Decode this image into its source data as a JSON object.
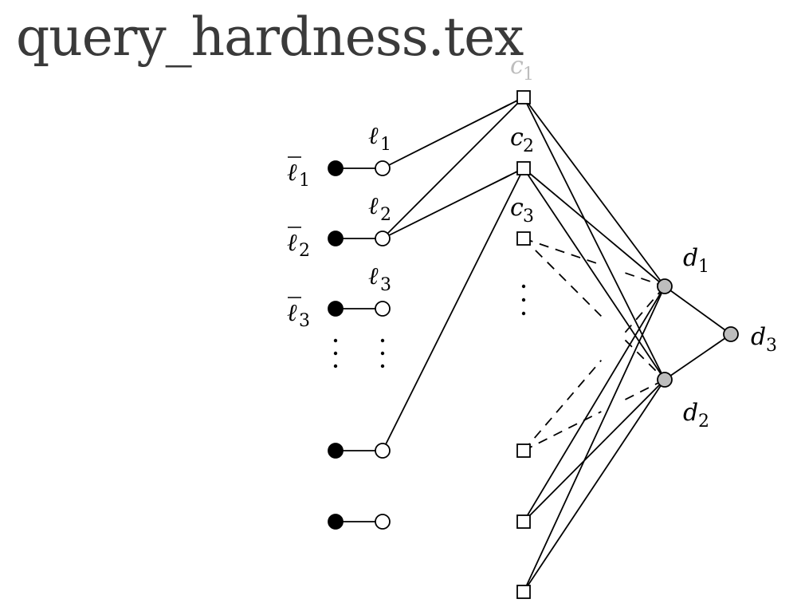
{
  "title": "query_hardness.tex",
  "colors": {
    "literal_neg": "#000000",
    "literal_pos": "#ffffff",
    "clause": "#ffffff",
    "d_node": "#bdbdbd",
    "edge": "#000000",
    "title": "#3a3a3a"
  },
  "labels": {
    "lbar1": "ℓ",
    "lbar1_sub": "1",
    "lbar2": "ℓ",
    "lbar2_sub": "2",
    "lbar3": "ℓ",
    "lbar3_sub": "3",
    "l1": "ℓ",
    "l1_sub": "1",
    "l2": "ℓ",
    "l2_sub": "2",
    "l3": "ℓ",
    "l3_sub": "3",
    "c1": "c",
    "c1_sub": "1",
    "c2": "c",
    "c2_sub": "2",
    "c3": "c",
    "c3_sub": "3",
    "d1": "d",
    "d1_sub": "1",
    "d2": "d",
    "d2_sub": "2",
    "d3": "d",
    "d3_sub": "3"
  },
  "nodes": [
    {
      "id": "nl1",
      "kind": "literal_neg"
    },
    {
      "id": "nl2",
      "kind": "literal_neg"
    },
    {
      "id": "nl3",
      "kind": "literal_neg"
    },
    {
      "id": "nl4",
      "kind": "literal_neg"
    },
    {
      "id": "nl5",
      "kind": "literal_neg"
    },
    {
      "id": "pl1",
      "kind": "literal_pos"
    },
    {
      "id": "pl2",
      "kind": "literal_pos"
    },
    {
      "id": "pl3",
      "kind": "literal_pos"
    },
    {
      "id": "pl4",
      "kind": "literal_pos"
    },
    {
      "id": "pl5",
      "kind": "literal_pos"
    },
    {
      "id": "c1",
      "kind": "clause"
    },
    {
      "id": "c2",
      "kind": "clause"
    },
    {
      "id": "c3",
      "kind": "clause"
    },
    {
      "id": "c4",
      "kind": "clause"
    },
    {
      "id": "c5",
      "kind": "clause"
    },
    {
      "id": "c6",
      "kind": "clause"
    },
    {
      "id": "d1",
      "kind": "d_node"
    },
    {
      "id": "d2",
      "kind": "d_node"
    },
    {
      "id": "d3",
      "kind": "d_node"
    }
  ],
  "edges": [
    {
      "from": "nl1",
      "to": "pl1",
      "style": "solid"
    },
    {
      "from": "nl2",
      "to": "pl2",
      "style": "solid"
    },
    {
      "from": "nl3",
      "to": "pl3",
      "style": "solid"
    },
    {
      "from": "nl4",
      "to": "pl4",
      "style": "solid"
    },
    {
      "from": "nl5",
      "to": "pl5",
      "style": "solid"
    },
    {
      "from": "pl1",
      "to": "c1",
      "style": "solid"
    },
    {
      "from": "pl2",
      "to": "c1",
      "style": "solid"
    },
    {
      "from": "pl2",
      "to": "c2",
      "style": "solid"
    },
    {
      "from": "pl4",
      "to": "c2",
      "style": "solid"
    },
    {
      "from": "c1",
      "to": "d1",
      "style": "solid"
    },
    {
      "from": "c1",
      "to": "d2",
      "style": "solid"
    },
    {
      "from": "c2",
      "to": "d1",
      "style": "solid"
    },
    {
      "from": "c2",
      "to": "d2",
      "style": "solid"
    },
    {
      "from": "c5",
      "to": "d1",
      "style": "solid"
    },
    {
      "from": "c5",
      "to": "d2",
      "style": "solid"
    },
    {
      "from": "c6",
      "to": "d1",
      "style": "solid"
    },
    {
      "from": "c6",
      "to": "d2",
      "style": "solid"
    },
    {
      "from": "d1",
      "to": "d3",
      "style": "solid"
    },
    {
      "from": "d2",
      "to": "d3",
      "style": "solid"
    },
    {
      "from": "c3",
      "to": "d1",
      "style": "dashed"
    },
    {
      "from": "c3",
      "to": "d2",
      "style": "dashed"
    },
    {
      "from": "c4",
      "to": "d1",
      "style": "dashed"
    },
    {
      "from": "c4",
      "to": "d2",
      "style": "dashed"
    },
    {
      "from": "c1",
      "to": "pl1",
      "style": "dashed",
      "partial": true
    },
    {
      "from": "c2",
      "to": "pl2",
      "style": "dashed",
      "partial": true
    }
  ]
}
